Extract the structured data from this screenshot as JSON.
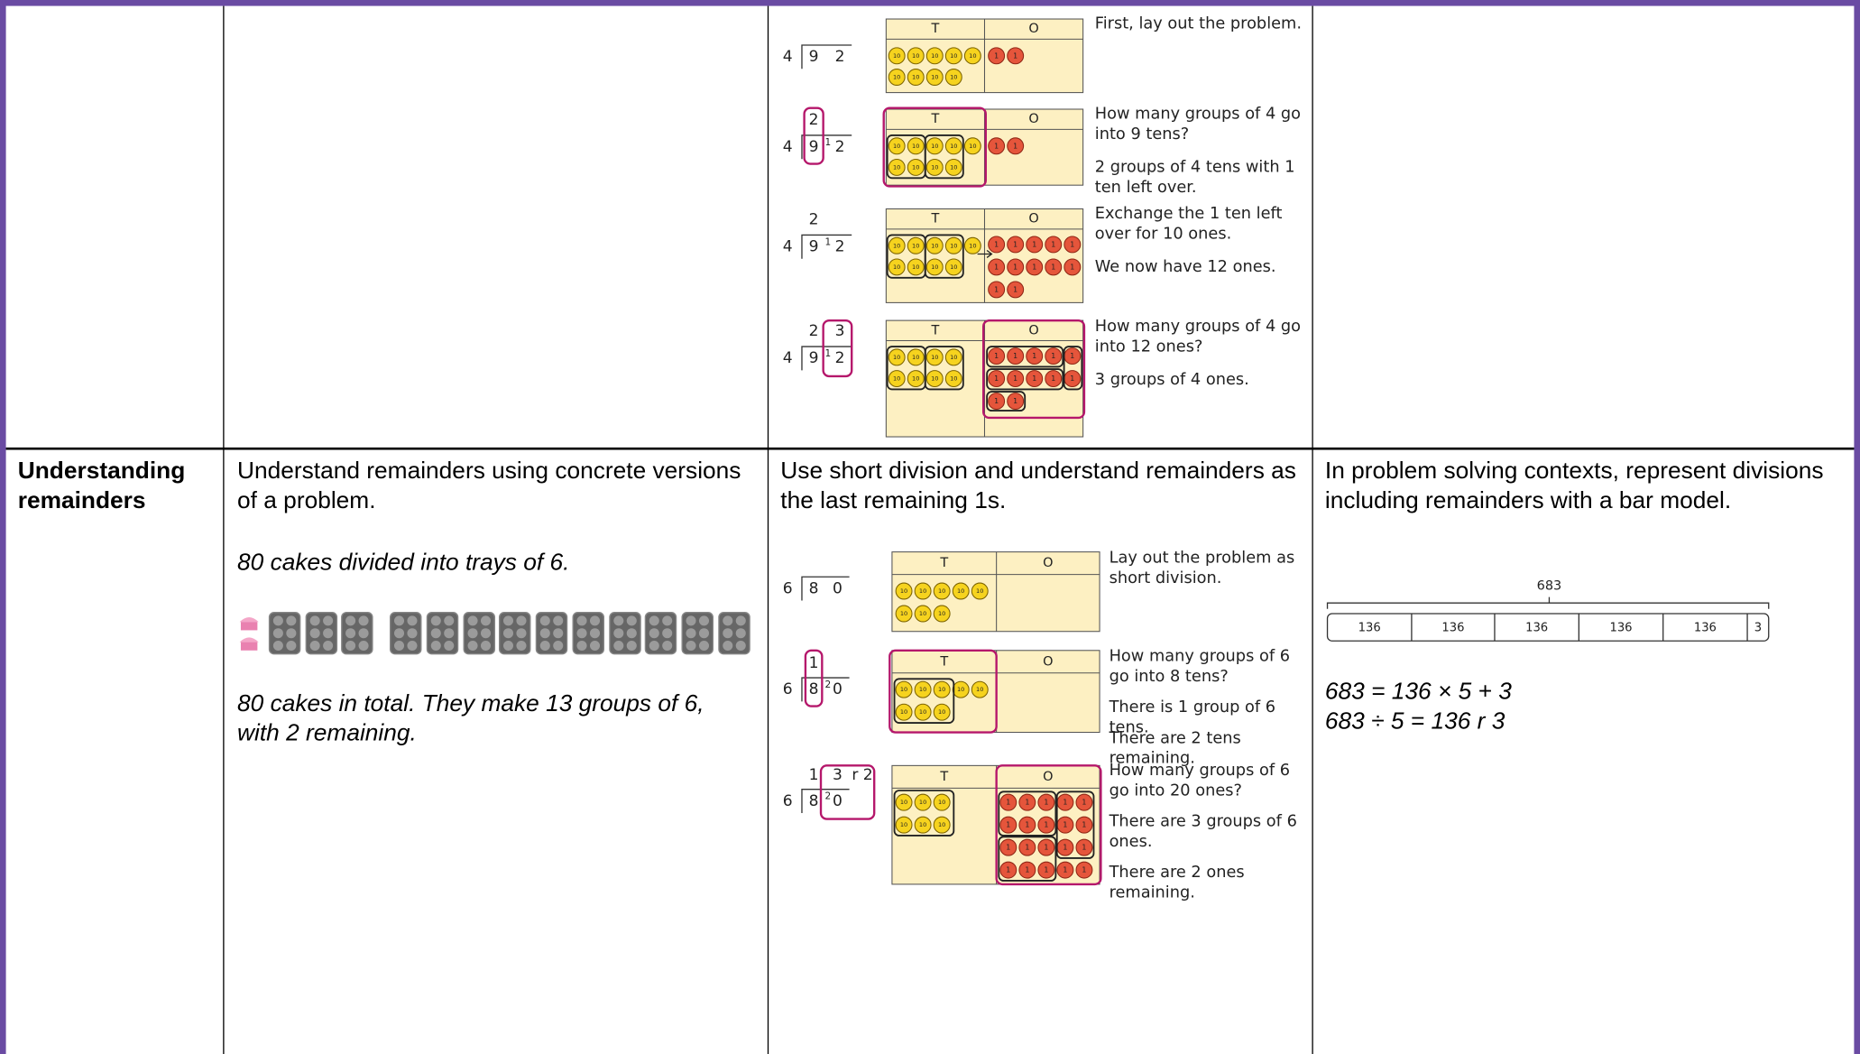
{
  "rows": [
    {
      "pictorial": {
        "figure": {
          "divisor": "4",
          "dividend": [
            "9",
            "2"
          ],
          "steps": [
            {
              "notes": [
                "First, lay out the problem."
              ]
            },
            {
              "quotient": [
                "2"
              ],
              "carry": "1",
              "notes": [
                "How many groups of 4 go into 9 tens?",
                "2 groups of 4 tens with 1 ten left over."
              ]
            },
            {
              "quotient": [
                "2"
              ],
              "carry": "1",
              "notes": [
                "Exchange the 1 ten left over for 10 ones.",
                "We now have 12 ones."
              ]
            },
            {
              "quotient": [
                "2",
                "3"
              ],
              "carry": "1",
              "notes": [
                "How many groups of 4 go into 12 ones?",
                "3 groups of 4 ones."
              ]
            }
          ]
        }
      }
    },
    {
      "heading": "Understanding remainders",
      "concrete": {
        "intro": "Understand remainders using concrete versions of a problem.",
        "problem": "80 cakes divided into trays of 6.",
        "result": "80 cakes in total. They make 13 groups of 6, with 2 remaining."
      },
      "pictorial": {
        "intro": "Use short division and understand remainders as the last remaining 1s.",
        "figure": {
          "divisor": "6",
          "dividend": [
            "8",
            "0"
          ],
          "steps": [
            {
              "notes": [
                "Lay out the problem as short division."
              ]
            },
            {
              "quotient": [
                "1"
              ],
              "carry": "2",
              "notes": [
                "How many groups of 6 go into 8 tens?",
                "There is 1 group of 6 tens.",
                "There are 2 tens remaining."
              ]
            },
            {
              "quotient": [
                "1",
                "3",
                "r 2"
              ],
              "carry": "2",
              "notes": [
                "How many groups of 6 go into 20 ones?",
                "There are 3 groups of 6 ones.",
                "There are 2 ones remaining."
              ]
            }
          ]
        }
      },
      "abstract": {
        "intro": "In problem solving contexts, represent divisions including remainders with a bar model.",
        "bar_model": {
          "total": "683",
          "parts": [
            "136",
            "136",
            "136",
            "136",
            "136",
            "3"
          ]
        },
        "equations": [
          "683 = 136 × 5 + 3",
          "683 ÷ 5 = 136 r 3"
        ]
      }
    }
  ],
  "place_value_headers": [
    "T",
    "O"
  ],
  "counter_labels": {
    "ten": "10",
    "one": "1"
  }
}
